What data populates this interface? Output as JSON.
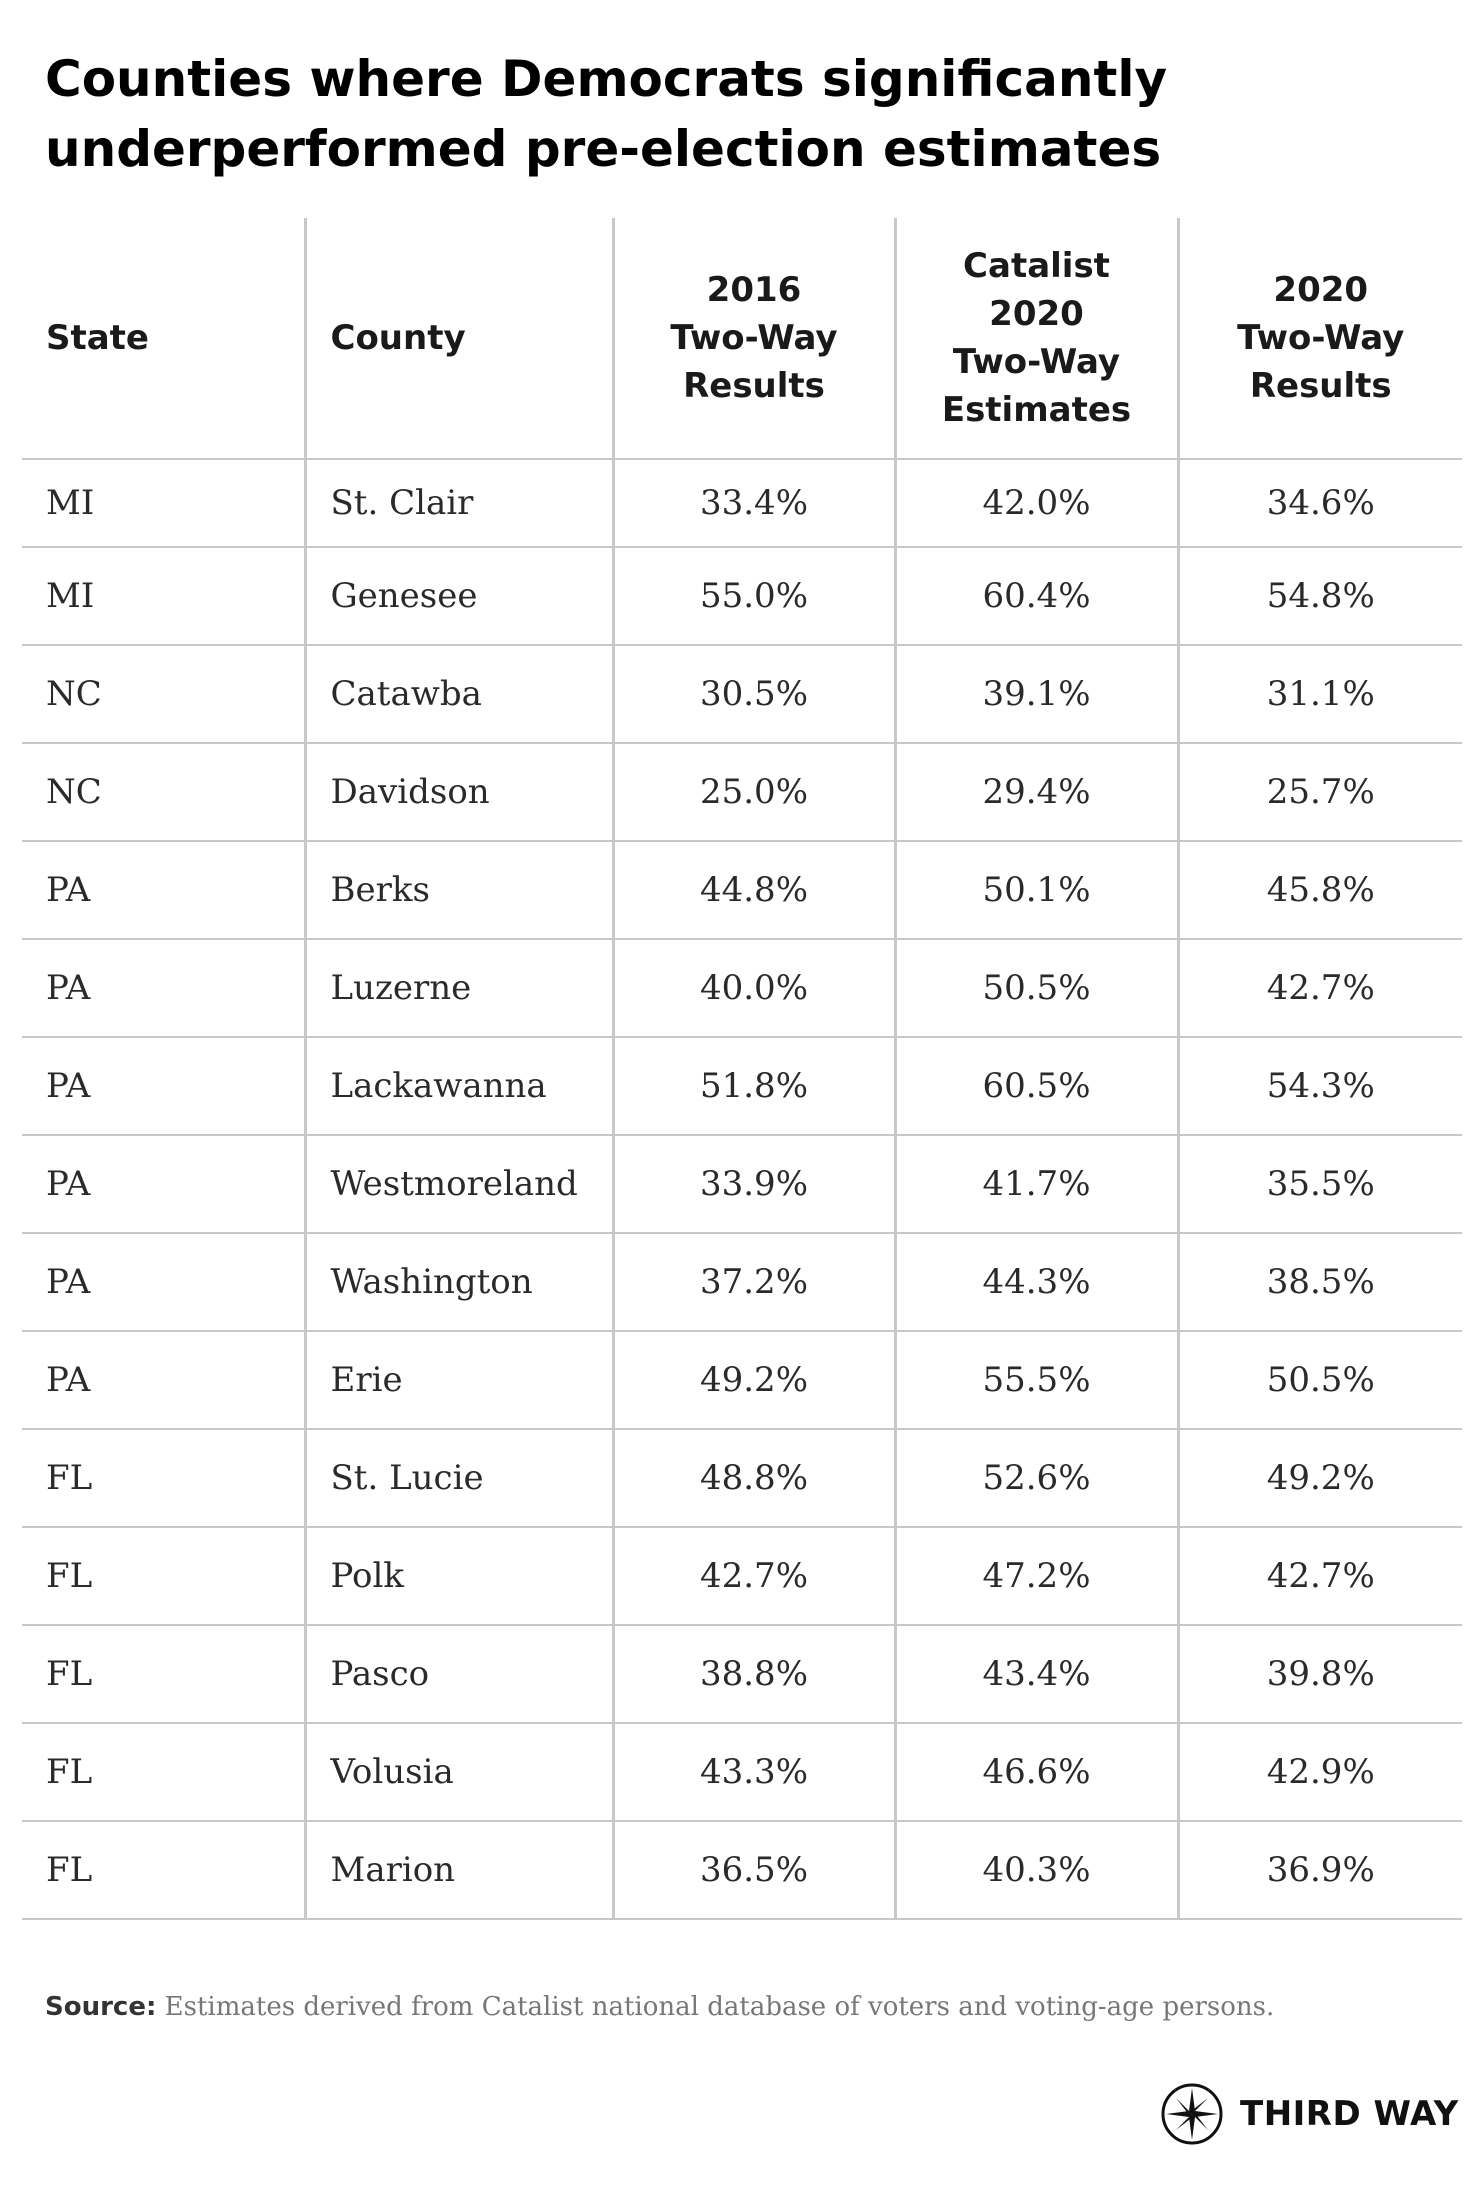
{
  "chart_data": {
    "type": "table",
    "title_lines": [
      "Counties where Democrats significantly",
      "underperformed pre-election estimates"
    ],
    "headers": {
      "state": [
        "State"
      ],
      "county": [
        "County"
      ],
      "results_2016": [
        "2016",
        "Two-Way",
        "Results"
      ],
      "catalist_2020": [
        "Catalist",
        "2020",
        "Two-Way",
        "Estimates"
      ],
      "results_2020": [
        "2020",
        "Two-Way",
        "Results"
      ]
    },
    "rows": [
      {
        "state": "MI",
        "county": "St. Clair",
        "results_2016": "33.4%",
        "catalist_2020": "42.0%",
        "results_2020": "34.6%"
      },
      {
        "state": "MI",
        "county": "Genesee",
        "results_2016": "55.0%",
        "catalist_2020": "60.4%",
        "results_2020": "54.8%"
      },
      {
        "state": "NC",
        "county": "Catawba",
        "results_2016": "30.5%",
        "catalist_2020": "39.1%",
        "results_2020": "31.1%"
      },
      {
        "state": "NC",
        "county": "Davidson",
        "results_2016": "25.0%",
        "catalist_2020": "29.4%",
        "results_2020": "25.7%"
      },
      {
        "state": "PA",
        "county": "Berks",
        "results_2016": "44.8%",
        "catalist_2020": "50.1%",
        "results_2020": "45.8%"
      },
      {
        "state": "PA",
        "county": "Luzerne",
        "results_2016": "40.0%",
        "catalist_2020": "50.5%",
        "results_2020": "42.7%"
      },
      {
        "state": "PA",
        "county": "Lackawanna",
        "results_2016": "51.8%",
        "catalist_2020": "60.5%",
        "results_2020": "54.3%"
      },
      {
        "state": "PA",
        "county": "Westmoreland",
        "results_2016": "33.9%",
        "catalist_2020": "41.7%",
        "results_2020": "35.5%"
      },
      {
        "state": "PA",
        "county": "Washington",
        "results_2016": "37.2%",
        "catalist_2020": "44.3%",
        "results_2020": "38.5%"
      },
      {
        "state": "PA",
        "county": "Erie",
        "results_2016": "49.2%",
        "catalist_2020": "55.5%",
        "results_2020": "50.5%"
      },
      {
        "state": "FL",
        "county": "St. Lucie",
        "results_2016": "48.8%",
        "catalist_2020": "52.6%",
        "results_2020": "49.2%"
      },
      {
        "state": "FL",
        "county": "Polk",
        "results_2016": "42.7%",
        "catalist_2020": "47.2%",
        "results_2020": "42.7%"
      },
      {
        "state": "FL",
        "county": "Pasco",
        "results_2016": "38.8%",
        "catalist_2020": "43.4%",
        "results_2020": "39.8%"
      },
      {
        "state": "FL",
        "county": "Volusia",
        "results_2016": "43.3%",
        "catalist_2020": "46.6%",
        "results_2020": "42.9%"
      },
      {
        "state": "FL",
        "county": "Marion",
        "results_2016": "36.5%",
        "catalist_2020": "40.3%",
        "results_2020": "36.9%"
      }
    ]
  },
  "source": {
    "label": "Source:",
    "text": "Estimates derived from Catalist national database of voters and voting-age persons."
  },
  "logo": {
    "text": "THIRD WAY",
    "icon": "compass-star-icon"
  }
}
